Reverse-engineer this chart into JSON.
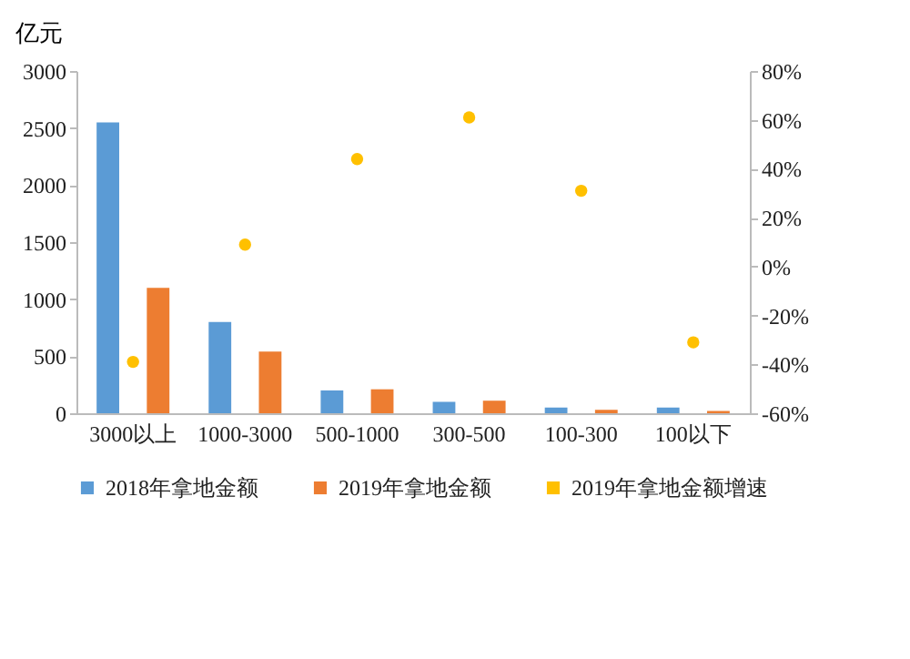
{
  "chart_data": {
    "type": "bar",
    "ylabel": "亿元",
    "categories": [
      "3000以上",
      "1000-3000",
      "500-1000",
      "300-500",
      "100-300",
      "100以下"
    ],
    "series": [
      {
        "name": "2018年拿地金额",
        "color": "#5b9bd5",
        "values": [
          2550,
          800,
          200,
          100,
          50,
          50
        ]
      },
      {
        "name": "2019年拿地金额",
        "color": "#ed7d31",
        "values": [
          1100,
          540,
          210,
          110,
          30,
          20
        ]
      },
      {
        "name": "2019年拿地金额增速",
        "color": "#ffc000",
        "type": "scatter",
        "axis": "y2",
        "values": [
          -39,
          9,
          44,
          61,
          31,
          -31
        ]
      }
    ],
    "ylim": [
      0,
      3000
    ],
    "yticks": [
      0,
      500,
      1000,
      1500,
      2000,
      2500,
      3000
    ],
    "y2lim": [
      -60,
      80
    ],
    "y2ticks": [
      {
        "value": -60,
        "label": "-60%"
      },
      {
        "value": -40,
        "label": "-40%"
      },
      {
        "value": -20,
        "label": "-20%"
      },
      {
        "value": 0,
        "label": "0%"
      },
      {
        "value": 20,
        "label": "20%"
      },
      {
        "value": 40,
        "label": "40%"
      },
      {
        "value": 60,
        "label": "60%"
      },
      {
        "value": 80,
        "label": "80%"
      }
    ],
    "grid": false,
    "legend": "bottom",
    "marker": "circle"
  }
}
